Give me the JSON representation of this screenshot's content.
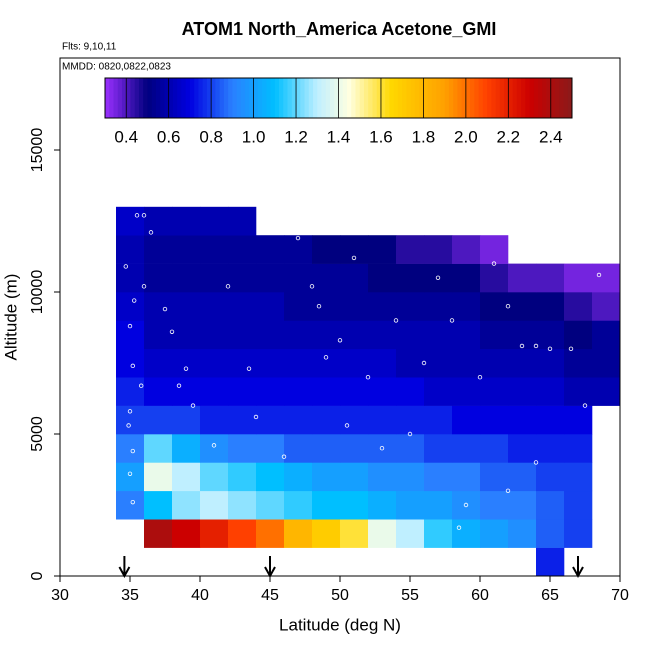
{
  "chart_data": {
    "type": "heatmap",
    "title": "ATOM1 North_America Acetone_GMI",
    "subtitle": "Flts: 9,10,11",
    "annotation": "MMDD: 0820,0822,0823",
    "x_label": "Latitude (deg N)",
    "y_label": "Altitude (m)",
    "xlim": [
      30,
      70
    ],
    "ylim": [
      0,
      18240
    ],
    "xticks": [
      30,
      35,
      40,
      45,
      50,
      55,
      60,
      65,
      70
    ],
    "yticks": [
      0,
      5000,
      10000,
      15000
    ],
    "x_edges": [
      34,
      36,
      38,
      40,
      42,
      44,
      46,
      48,
      50,
      52,
      54,
      56,
      58,
      60,
      62,
      64,
      66,
      68,
      70
    ],
    "y_edges": [
      0,
      1000,
      2000,
      3000,
      4000,
      5000,
      6000,
      7000,
      8000,
      9000,
      10000,
      11000,
      12000,
      13000
    ],
    "values": [
      [
        null,
        null,
        null,
        null,
        null,
        null,
        null,
        null,
        null,
        null,
        null,
        null,
        null,
        null,
        null,
        0.75,
        null,
        null
      ],
      [
        null,
        2.4,
        2.3,
        2.2,
        2.1,
        2.0,
        1.8,
        1.7,
        1.6,
        1.4,
        1.3,
        1.15,
        1.05,
        1.0,
        0.95,
        0.85,
        0.8,
        null
      ],
      [
        0.9,
        1.1,
        1.25,
        1.3,
        1.25,
        1.2,
        1.15,
        1.1,
        1.1,
        1.05,
        1.0,
        1.0,
        0.95,
        0.9,
        0.9,
        0.85,
        0.8,
        null
      ],
      [
        1.0,
        1.4,
        1.3,
        1.2,
        1.15,
        1.1,
        1.05,
        1.0,
        1.0,
        0.95,
        0.95,
        0.9,
        0.9,
        0.85,
        0.85,
        0.8,
        0.8,
        null
      ],
      [
        0.9,
        1.2,
        1.05,
        0.95,
        0.9,
        0.9,
        0.85,
        0.85,
        0.85,
        0.85,
        0.85,
        0.8,
        0.8,
        0.8,
        0.75,
        0.75,
        0.75,
        null
      ],
      [
        0.8,
        0.8,
        0.8,
        0.75,
        0.75,
        0.75,
        0.75,
        0.75,
        0.75,
        0.75,
        0.75,
        0.75,
        0.7,
        0.7,
        0.7,
        0.7,
        0.7,
        null
      ],
      [
        0.75,
        0.7,
        0.7,
        0.7,
        0.7,
        0.7,
        0.7,
        0.7,
        0.7,
        0.7,
        0.7,
        0.65,
        0.65,
        0.65,
        0.65,
        0.65,
        0.6,
        0.6
      ],
      [
        0.7,
        0.65,
        0.65,
        0.65,
        0.65,
        0.65,
        0.65,
        0.65,
        0.65,
        0.65,
        0.6,
        0.6,
        0.6,
        0.6,
        0.6,
        0.6,
        0.55,
        0.55
      ],
      [
        0.7,
        0.6,
        0.6,
        0.6,
        0.6,
        0.6,
        0.6,
        0.6,
        0.6,
        0.6,
        0.6,
        0.6,
        0.6,
        0.55,
        0.55,
        0.55,
        0.5,
        0.55
      ],
      [
        0.65,
        0.6,
        0.6,
        0.6,
        0.6,
        0.6,
        0.55,
        0.55,
        0.55,
        0.55,
        0.55,
        0.55,
        0.55,
        0.5,
        0.5,
        0.5,
        0.45,
        0.4
      ],
      [
        0.6,
        0.55,
        0.55,
        0.55,
        0.55,
        0.55,
        0.55,
        0.55,
        0.55,
        0.5,
        0.5,
        0.5,
        0.5,
        0.45,
        0.4,
        0.4,
        0.35,
        0.35
      ],
      [
        0.6,
        0.55,
        0.55,
        0.55,
        0.55,
        0.55,
        0.55,
        0.5,
        0.5,
        0.5,
        0.45,
        0.45,
        0.4,
        0.35,
        null,
        null,
        null,
        null
      ],
      [
        0.65,
        0.6,
        0.6,
        0.6,
        0.6,
        null,
        null,
        null,
        null,
        null,
        null,
        null,
        null,
        null,
        null,
        null,
        null,
        null
      ]
    ],
    "track": {
      "x": [
        35.5,
        36,
        36.5,
        34.7,
        35.3,
        36,
        35,
        35.2,
        35.8,
        35,
        34.9,
        35.2,
        35,
        35.2,
        37.5,
        38,
        38.5,
        39,
        39.5,
        41,
        42,
        43.5,
        44,
        46,
        47,
        48,
        48.5,
        49,
        50,
        50.5,
        51,
        52,
        53,
        54,
        55,
        56,
        57,
        58,
        59,
        60,
        61,
        62,
        63,
        64,
        65,
        66.5,
        67.5,
        68.5,
        64,
        62,
        58.5
      ],
      "y": [
        12700,
        12700,
        12100,
        10900,
        9700,
        10200,
        8800,
        7400,
        6700,
        5800,
        5300,
        4400,
        3600,
        2600,
        9400,
        8600,
        6700,
        7300,
        6000,
        4600,
        10200,
        7300,
        5600,
        4200,
        11900,
        10200,
        9500,
        7700,
        8300,
        5300,
        11200,
        7000,
        4500,
        9000,
        5000,
        7500,
        10500,
        9000,
        2500,
        7000,
        11000,
        9500,
        8100,
        8100,
        8000,
        8000,
        6000,
        10600,
        4000,
        3000,
        1700
      ]
    },
    "arrows": [
      34.6,
      45,
      67
    ],
    "colorbar_lim": [
      0.3,
      2.5
    ],
    "colorbar_ticks": [
      0.4,
      0.6,
      0.8,
      {
        "value": 1,
        "label": "1.0"
      },
      1.2,
      1.4,
      1.6,
      1.8,
      {
        "value": 2,
        "label": "2.0"
      },
      2.2,
      2.4
    ],
    "colorscale": [
      [
        0.3,
        "#9b30ff"
      ],
      [
        0.5,
        "#00007f"
      ],
      [
        0.7,
        "#0000e0"
      ],
      [
        0.9,
        "#2a7fff"
      ],
      [
        1.1,
        "#00bfff"
      ],
      [
        1.3,
        "#bfefff"
      ],
      [
        1.45,
        "#ffffe0"
      ],
      [
        1.65,
        "#ffd700"
      ],
      [
        1.9,
        "#ffa000"
      ],
      [
        2.1,
        "#ff4000"
      ],
      [
        2.3,
        "#cc0000"
      ],
      [
        2.5,
        "#8b1a1a"
      ]
    ],
    "track_color": "#ffffff"
  }
}
